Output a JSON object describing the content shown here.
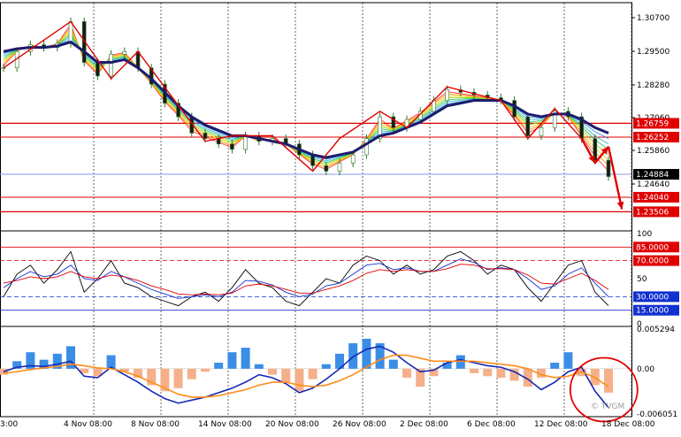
{
  "watermark": "© TVGM",
  "price_axis": {
    "ticks": [
      "1.30700",
      "1.29500",
      "1.28280",
      "1.27060",
      "1.25860",
      "1.24640"
    ],
    "hlines": [
      {
        "price": 1.26759,
        "label": "1.26759",
        "color": "#e00000",
        "width": 1.3
      },
      {
        "price": 1.26252,
        "label": "1.26252",
        "color": "#e00000",
        "width": 1
      },
      {
        "price": 1.24884,
        "label": "1.24884",
        "color": "#000000",
        "line_color": "#8899ee",
        "width": 1
      },
      {
        "price": 1.2404,
        "label": "1.24040",
        "color": "#e00000",
        "width": 1
      },
      {
        "price": 1.23506,
        "label": "1.23506",
        "color": "#e00000",
        "width": 1.3
      }
    ]
  },
  "osc_axis": {
    "ticks": [
      "100",
      "50",
      "0"
    ],
    "levels": [
      {
        "value": 85,
        "label": "85.0000",
        "color": "#e00000"
      },
      {
        "value": 70,
        "label": "70.0000",
        "color": "#e00000"
      },
      {
        "value": 30,
        "label": "30.0000",
        "color": "#1030d0"
      },
      {
        "value": 15,
        "label": "15.0000",
        "color": "#1030d0"
      }
    ]
  },
  "macd_axis": {
    "ticks": [
      "0.005294",
      "0.00",
      "-0.006051"
    ]
  },
  "x_axis": {
    "labels": [
      "3:00",
      "4 Nov 08:00",
      "8 Nov 08:00",
      "14 Nov 08:00",
      "20 Nov 08:00",
      "26 Nov 08:00",
      "2 Dec 08:00",
      "6 Dec 08:00",
      "12 Dec 08:00",
      "18 Dec 08:00"
    ]
  },
  "chart_data": [
    {
      "type": "line",
      "title": "",
      "ylim": [
        1.229,
        1.311
      ],
      "series": [
        {
          "values": [
            1.288,
            1.294,
            1.2965,
            1.2955,
            1.297,
            1.305,
            1.29,
            1.285,
            1.293,
            1.294,
            1.288,
            1.282,
            1.275,
            1.27,
            1.264,
            1.262,
            1.26,
            1.258,
            1.263,
            1.261,
            1.262,
            1.26,
            1.256,
            1.252,
            1.25,
            1.253,
            1.256,
            1.262,
            1.27,
            1.266,
            1.269,
            1.272,
            1.276,
            1.28,
            1.279,
            1.278,
            1.277,
            1.276,
            1.27,
            1.263,
            1.266,
            1.272,
            1.27,
            1.262,
            1.254,
            1.248
          ]
        },
        {
          "values": [
            1.294,
            1.295,
            1.2955,
            1.2955,
            1.296,
            1.2975,
            1.294,
            1.29,
            1.29,
            1.291,
            1.288,
            1.284,
            1.279,
            1.274,
            1.27,
            1.267,
            1.265,
            1.263,
            1.263,
            1.262,
            1.261,
            1.26,
            1.258,
            1.256,
            1.255,
            1.256,
            1.257,
            1.26,
            1.263,
            1.264,
            1.266,
            1.268,
            1.271,
            1.274,
            1.275,
            1.276,
            1.276,
            1.276,
            1.274,
            1.271,
            1.27,
            1.271,
            1.271,
            1.269,
            1.266,
            1.264
          ]
        }
      ],
      "zigzag": [
        [
          0,
          1.288
        ],
        [
          5,
          1.305
        ],
        [
          8,
          1.284
        ],
        [
          10,
          1.294
        ],
        [
          15,
          1.261
        ],
        [
          17,
          1.263
        ],
        [
          20,
          1.263
        ],
        [
          23,
          1.25
        ],
        [
          25,
          1.262
        ],
        [
          28,
          1.272
        ],
        [
          30,
          1.266
        ],
        [
          33,
          1.281
        ],
        [
          37,
          1.276
        ],
        [
          39,
          1.262
        ],
        [
          41,
          1.273
        ],
        [
          43,
          1.262
        ]
      ],
      "arrows": [
        [
          43,
          1.262,
          44,
          1.253
        ],
        [
          44,
          1.253,
          45,
          1.259
        ],
        [
          45,
          1.259,
          46,
          1.236
        ]
      ]
    },
    {
      "type": "line",
      "title": "",
      "ylim": [
        0,
        100
      ],
      "series": [
        {
          "values": [
            30,
            55,
            65,
            45,
            60,
            80,
            35,
            50,
            70,
            45,
            40,
            30,
            25,
            20,
            30,
            35,
            25,
            40,
            60,
            45,
            40,
            25,
            20,
            35,
            50,
            45,
            65,
            75,
            70,
            55,
            65,
            55,
            60,
            75,
            80,
            70,
            55,
            65,
            60,
            40,
            25,
            45,
            65,
            70,
            35,
            20
          ]
        },
        {
          "values": [
            40,
            50,
            58,
            52,
            55,
            65,
            50,
            48,
            58,
            52,
            45,
            38,
            33,
            28,
            30,
            32,
            30,
            35,
            48,
            47,
            43,
            35,
            30,
            33,
            42,
            45,
            55,
            65,
            67,
            60,
            62,
            58,
            58,
            65,
            72,
            68,
            60,
            62,
            60,
            50,
            38,
            42,
            55,
            62,
            45,
            30
          ]
        },
        {
          "values": [
            45,
            48,
            52,
            50,
            52,
            58,
            52,
            50,
            54,
            52,
            48,
            42,
            38,
            33,
            32,
            33,
            32,
            34,
            42,
            44,
            42,
            38,
            34,
            34,
            38,
            42,
            48,
            56,
            60,
            58,
            60,
            58,
            58,
            61,
            66,
            65,
            61,
            61,
            60,
            54,
            45,
            44,
            50,
            56,
            48,
            38
          ]
        }
      ]
    },
    {
      "type": "bar",
      "title": "",
      "ylim": [
        -0.006051,
        0.005294
      ],
      "histogram": [
        -0.0008,
        0.001,
        0.0022,
        0.0012,
        0.002,
        0.003,
        -0.0006,
        -0.001,
        0.0018,
        -0.0004,
        -0.0012,
        -0.0022,
        -0.003,
        -0.0026,
        -0.0014,
        -0.0004,
        0.0008,
        0.0022,
        0.0028,
        0.0006,
        -0.0008,
        -0.0018,
        -0.003,
        -0.0014,
        0.0006,
        0.002,
        0.0034,
        0.004,
        0.0034,
        0.0012,
        -0.0012,
        -0.0024,
        -0.001,
        0.0008,
        0.0018,
        -0.0006,
        -0.001,
        -0.0012,
        -0.0016,
        -0.0024,
        -0.0012,
        0.0008,
        0.0022,
        -0.001,
        -0.0022,
        -0.0032
      ],
      "series": [
        {
          "values": [
            -0.0004,
            0.0002,
            0.0004,
            0.0003,
            0.0006,
            0.001,
            -0.001,
            -0.0012,
            0.0002,
            -0.0008,
            -0.0018,
            -0.003,
            -0.004,
            -0.0046,
            -0.0042,
            -0.0038,
            -0.0032,
            -0.0026,
            -0.0018,
            -0.0008,
            -0.0012,
            -0.002,
            -0.0032,
            -0.0026,
            -0.0014,
            0.0,
            0.0016,
            0.0026,
            0.003,
            0.0022,
            0.0008,
            -0.0004,
            -0.0002,
            0.0008,
            0.0012,
            0.0008,
            0.0004,
            0.0002,
            -0.0004,
            -0.0014,
            -0.0028,
            -0.0018,
            -0.0004,
            0.0002,
            -0.003,
            -0.0052
          ]
        },
        {
          "values": [
            -0.0006,
            -0.0004,
            -0.0001,
            0.0001,
            0.0003,
            0.0006,
            0.0004,
            0.0001,
            0.0,
            -0.0004,
            -0.001,
            -0.0018,
            -0.0026,
            -0.0034,
            -0.0038,
            -0.0038,
            -0.0036,
            -0.0032,
            -0.0028,
            -0.0022,
            -0.0018,
            -0.0018,
            -0.0022,
            -0.0024,
            -0.0022,
            -0.0016,
            -0.0008,
            0.0002,
            0.0012,
            0.0018,
            0.0018,
            0.0014,
            0.001,
            0.001,
            0.001,
            0.001,
            0.0008,
            0.0006,
            0.0004,
            0.0,
            -0.0008,
            -0.0012,
            -0.001,
            -0.0004,
            -0.0012,
            -0.0024
          ]
        }
      ]
    }
  ]
}
